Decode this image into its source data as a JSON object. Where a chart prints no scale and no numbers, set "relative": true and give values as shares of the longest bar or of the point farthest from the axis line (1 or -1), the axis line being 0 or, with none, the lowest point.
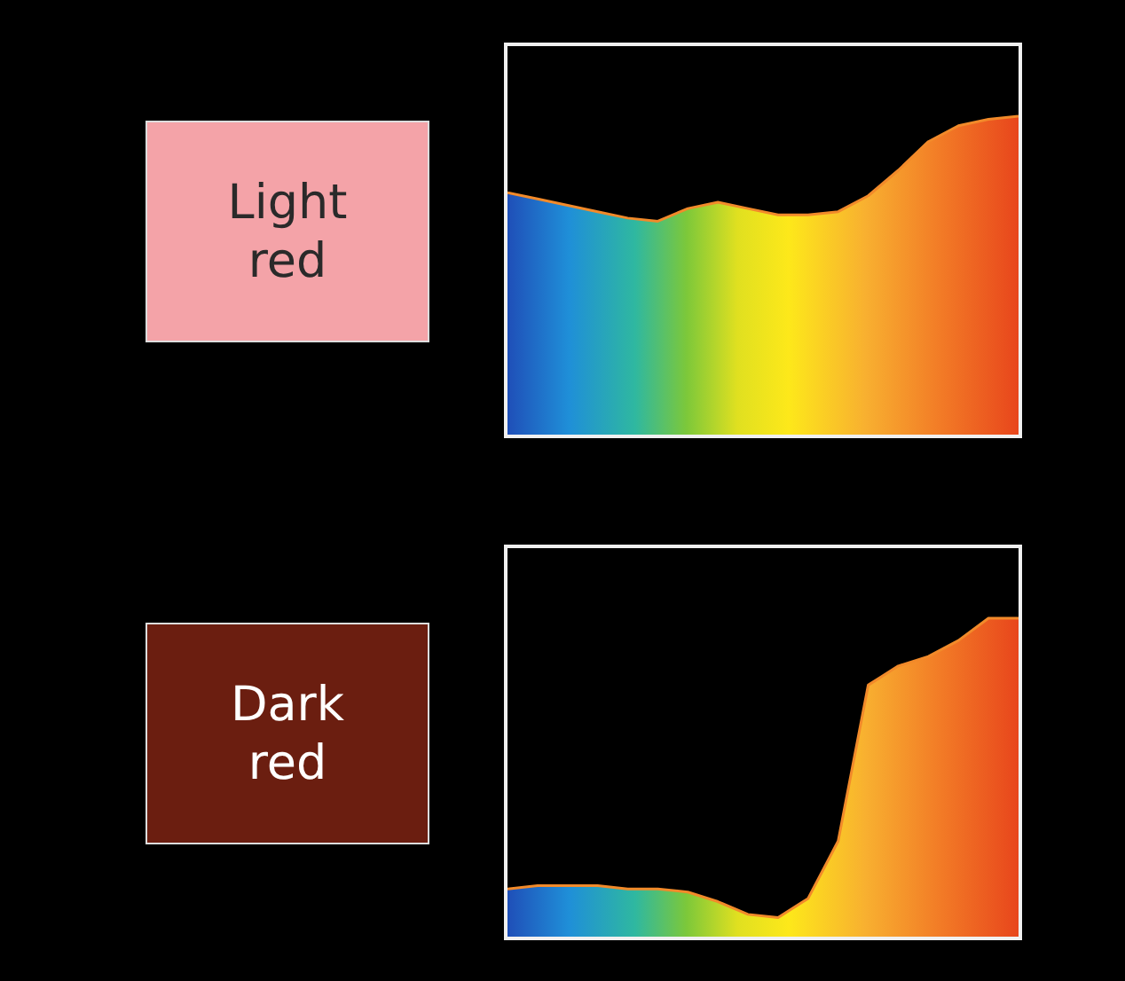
{
  "chart_data": [
    {
      "type": "area",
      "title": "Light red",
      "relative": true,
      "categories": [
        null,
        null,
        null,
        null,
        null,
        null,
        null,
        null,
        null,
        null,
        null,
        null,
        null,
        null,
        null,
        null,
        null,
        null
      ],
      "series": [
        {
          "color": "#f28a2a",
          "values": [
            0.76,
            0.74,
            0.72,
            0.7,
            0.68,
            0.67,
            0.71,
            0.73,
            0.71,
            0.69,
            0.69,
            0.7,
            0.75,
            0.83,
            0.92,
            0.97,
            0.99,
            1
          ]
        }
      ]
    },
    {
      "type": "area",
      "title": "Dark red",
      "relative": true,
      "categories": [
        null,
        null,
        null,
        null,
        null,
        null,
        null,
        null,
        null,
        null,
        null,
        null,
        null,
        null,
        null,
        null,
        null,
        null
      ],
      "series": [
        {
          "color": "#f28a2a",
          "values": [
            0.15,
            0.16,
            0.16,
            0.16,
            0.15,
            0.15,
            0.14,
            0.11,
            0.07,
            0.06,
            0.12,
            0.3,
            0.79,
            0.85,
            0.88,
            0.93,
            1,
            1
          ]
        }
      ]
    }
  ]
}
